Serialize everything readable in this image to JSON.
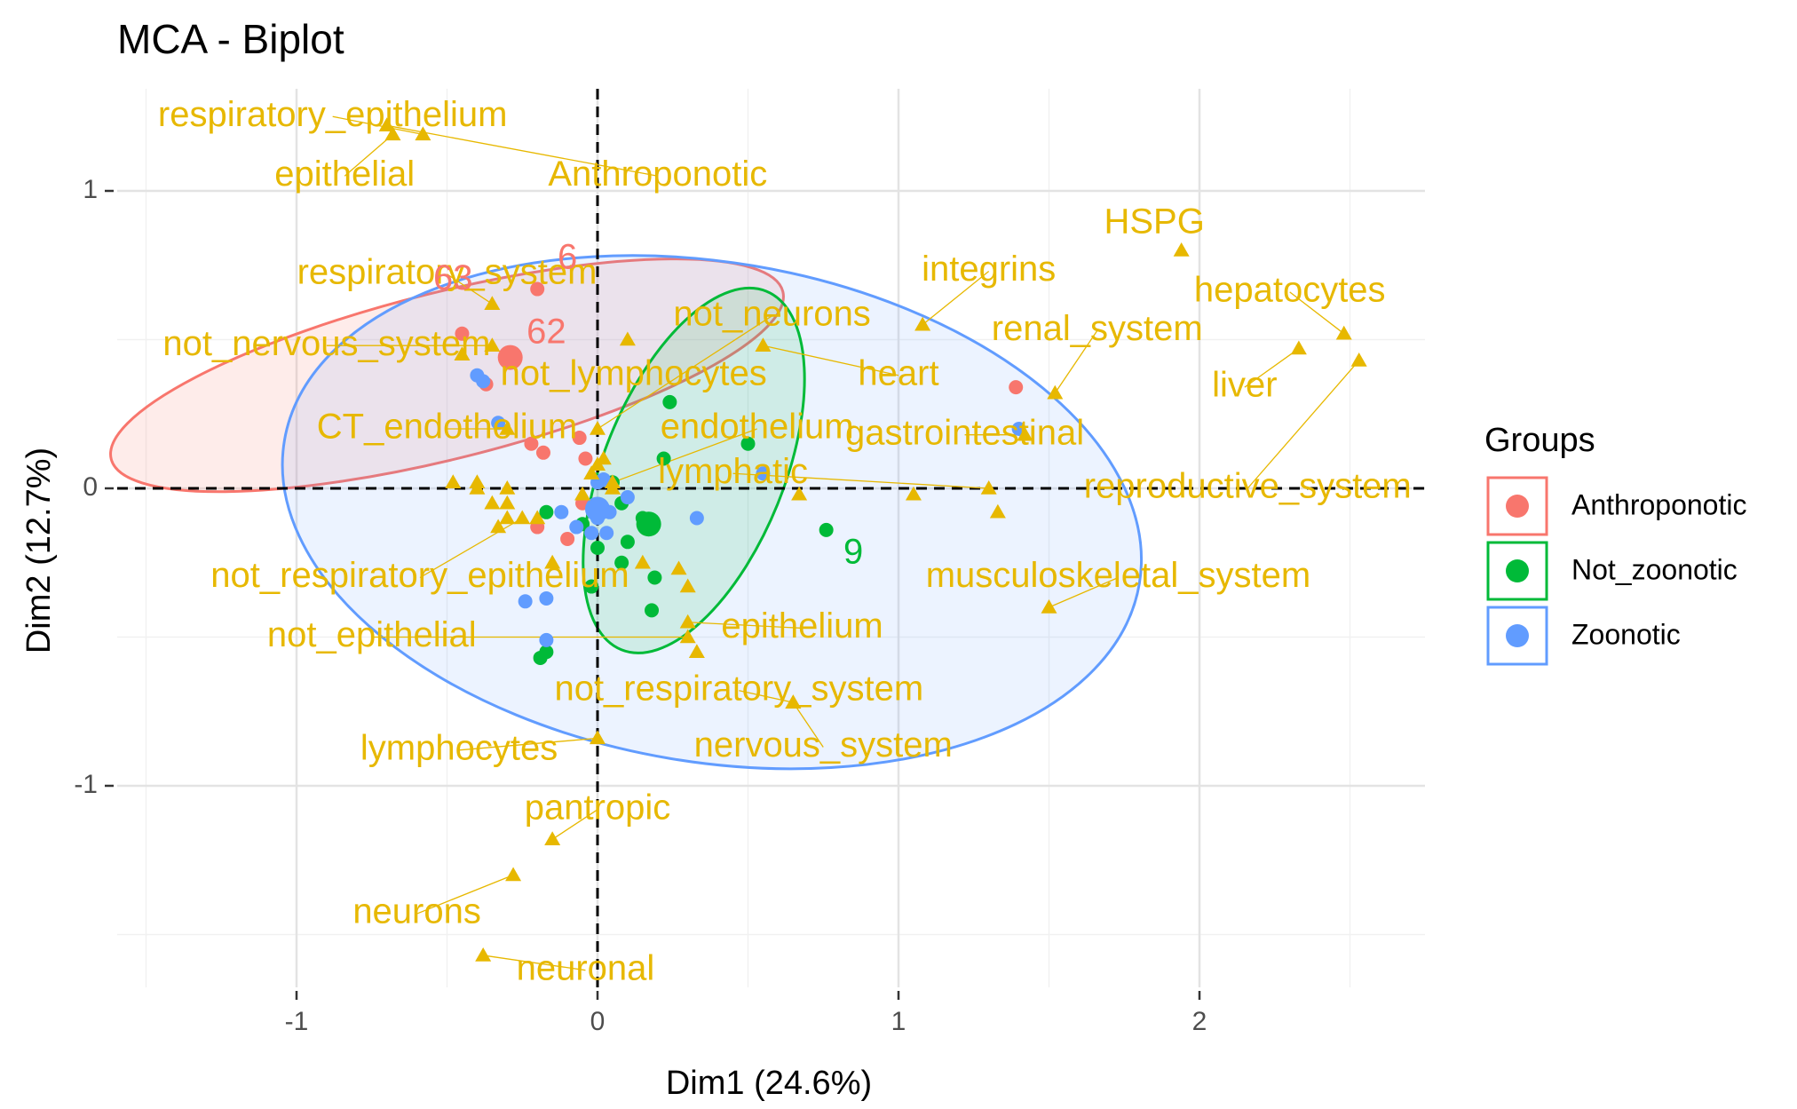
{
  "chart_data": {
    "type": "scatter",
    "title": "MCA - Biplot",
    "xlabel": "Dim1 (24.6%)",
    "ylabel": "Dim2 (12.7%)",
    "xlim": [
      -1.52,
      2.74
    ],
    "ylim": [
      -1.72,
      1.34
    ],
    "x_ticks": [
      -1,
      0,
      1,
      2
    ],
    "x_tick_labels": [
      "-1",
      "0",
      "1",
      "2"
    ],
    "y_ticks": [
      -1,
      0,
      1
    ],
    "y_tick_labels": [
      "-1",
      "0",
      "1"
    ],
    "grid": true,
    "reference_lines": {
      "x": 0,
      "y": 0,
      "style": "dashed"
    },
    "legend": {
      "title": "Groups",
      "position": "right",
      "entries": [
        {
          "name": "Anthroponotic",
          "color": "#F8766D"
        },
        {
          "name": "Not_zoonotic",
          "color": "#00BA38"
        },
        {
          "name": "Zoonotic",
          "color": "#619CFF"
        }
      ]
    },
    "ellipses": [
      {
        "group": "Anthroponotic",
        "color": "#F8766D",
        "center": [
          -0.5,
          0.38
        ],
        "rx": 1.15,
        "ry": 0.28,
        "angle_deg": -14
      },
      {
        "group": "Zoonotic",
        "color": "#619CFF",
        "center": [
          0.38,
          -0.08
        ],
        "rx": 1.44,
        "ry": 0.84,
        "angle_deg": 9.5
      },
      {
        "group": "Not_zoonotic",
        "color": "#00BA38",
        "center": [
          0.32,
          0.06
        ],
        "rx": 0.3,
        "ry": 0.65,
        "angle_deg": 22
      }
    ],
    "variable_color": "#E7B800",
    "variables": [
      {
        "label": "respiratory_epithelium",
        "x": -0.58,
        "y": 1.19,
        "lx": -0.88,
        "ly": 1.25
      },
      {
        "label": "epithelial",
        "x": -0.68,
        "y": 1.19,
        "lx": -0.84,
        "ly": 1.05
      },
      {
        "label": "Anthroponotic",
        "x": -0.7,
        "y": 1.22,
        "lx": 0.2,
        "ly": 1.05
      },
      {
        "label": "respiratory_system",
        "x": -0.35,
        "y": 0.62,
        "lx": -0.5,
        "ly": 0.72
      },
      {
        "label": "not_nervous_system",
        "x": -0.35,
        "y": 0.48,
        "lx": -0.9,
        "ly": 0.48
      },
      {
        "label": "not_lymphocytes",
        "x": 0.1,
        "y": 0.5,
        "lx": 0.12,
        "ly": 0.38
      },
      {
        "label": "heart",
        "x": 0.55,
        "y": 0.48,
        "lx": 1.0,
        "ly": 0.38
      },
      {
        "label": "not_neurons",
        "x": 0.0,
        "y": 0.2,
        "lx": 0.58,
        "ly": 0.58
      },
      {
        "label": "CT_endothelium",
        "x": -0.3,
        "y": 0.2,
        "lx": -0.5,
        "ly": 0.2
      },
      {
        "label": "endothelium",
        "x": 0.05,
        "y": 0.02,
        "lx": 0.53,
        "ly": 0.2
      },
      {
        "label": "lymphatic",
        "x": 1.3,
        "y": 0.0,
        "lx": 0.45,
        "ly": 0.05
      },
      {
        "label": "integrins",
        "x": 1.08,
        "y": 0.55,
        "lx": 1.3,
        "ly": 0.73
      },
      {
        "label": "renal_system",
        "x": 1.52,
        "y": 0.32,
        "lx": 1.66,
        "ly": 0.53
      },
      {
        "label": "HSPG",
        "x": 1.94,
        "y": 0.8,
        "lx": 1.85,
        "ly": 0.89
      },
      {
        "label": "hepatocytes",
        "x": 2.48,
        "y": 0.52,
        "lx": 2.3,
        "ly": 0.66
      },
      {
        "label": "liver",
        "x": 2.33,
        "y": 0.47,
        "lx": 2.15,
        "ly": 0.34
      },
      {
        "label": "gastrointestinal",
        "x": 1.42,
        "y": 0.18,
        "lx": 1.22,
        "ly": 0.18
      },
      {
        "label": "reproductive_system",
        "x": 2.53,
        "y": 0.43,
        "lx": 2.16,
        "ly": 0.0
      },
      {
        "label": "musculoskeletal_system",
        "x": 1.5,
        "y": -0.4,
        "lx": 1.73,
        "ly": -0.3
      },
      {
        "label": "not_respiratory_epithelium",
        "x": -0.25,
        "y": -0.1,
        "lx": -0.59,
        "ly": -0.3
      },
      {
        "label": "not_epithelial",
        "x": 0.3,
        "y": -0.5,
        "lx": -0.75,
        "ly": -0.5
      },
      {
        "label": "epithelium",
        "x": 0.3,
        "y": -0.45,
        "lx": 0.68,
        "ly": -0.47
      },
      {
        "label": "not_respiratory_system",
        "x": 0.65,
        "y": -0.72,
        "lx": 0.47,
        "ly": -0.68
      },
      {
        "label": "nervous_system",
        "x": 0.65,
        "y": -0.72,
        "lx": 0.75,
        "ly": -0.87
      },
      {
        "label": "lymphocytes",
        "x": 0.0,
        "y": -0.84,
        "lx": -0.46,
        "ly": -0.88
      },
      {
        "label": "pantropic",
        "x": -0.15,
        "y": -1.18,
        "lx": 0.0,
        "ly": -1.08
      },
      {
        "label": "neurons",
        "x": -0.28,
        "y": -1.3,
        "lx": -0.6,
        "ly": -1.43
      },
      {
        "label": "neuronal",
        "x": -0.38,
        "y": -1.57,
        "lx": -0.04,
        "ly": -1.62
      }
    ],
    "extra_variable_points": [
      [
        -0.48,
        0.02
      ],
      [
        -0.4,
        0.02
      ],
      [
        -0.3,
        0.0
      ],
      [
        -0.35,
        -0.05
      ],
      [
        -0.3,
        -0.05
      ],
      [
        -0.33,
        -0.13
      ],
      [
        -0.3,
        -0.1
      ],
      [
        -0.2,
        -0.1
      ],
      [
        -0.15,
        -0.25
      ],
      [
        -0.05,
        -0.02
      ],
      [
        -0.02,
        0.05
      ],
      [
        0.05,
        0.0
      ],
      [
        0.0,
        0.08
      ],
      [
        0.02,
        0.1
      ],
      [
        0.15,
        -0.25
      ],
      [
        0.27,
        -0.27
      ],
      [
        0.3,
        -0.33
      ],
      [
        0.33,
        -0.55
      ],
      [
        0.67,
        -0.02
      ],
      [
        1.05,
        -0.02
      ],
      [
        1.33,
        -0.08
      ],
      [
        -0.4,
        0.0
      ],
      [
        -0.45,
        0.45
      ]
    ],
    "individual_labels": [
      {
        "label": "63",
        "group": "Anthroponotic",
        "x": -0.48,
        "y": 0.7
      },
      {
        "label": "6",
        "group": "Anthroponotic",
        "x": -0.1,
        "y": 0.77
      },
      {
        "label": "62",
        "group": "Anthroponotic",
        "x": -0.17,
        "y": 0.52
      },
      {
        "label": "9",
        "group": "Not_zoonotic",
        "x": 0.85,
        "y": -0.22
      }
    ],
    "series": [
      {
        "name": "Anthroponotic",
        "color": "#F8766D",
        "centroid": [
          -0.29,
          0.44
        ],
        "points": [
          [
            -0.2,
            0.67
          ],
          [
            -0.45,
            0.52
          ],
          [
            -0.37,
            0.35
          ],
          [
            -0.22,
            0.15
          ],
          [
            -0.18,
            0.12
          ],
          [
            -0.06,
            0.17
          ],
          [
            -0.04,
            0.1
          ],
          [
            -0.05,
            -0.05
          ],
          [
            -0.1,
            -0.17
          ],
          [
            -0.2,
            -0.13
          ],
          [
            1.39,
            0.34
          ]
        ]
      },
      {
        "name": "Not_zoonotic",
        "color": "#00BA38",
        "centroid": [
          0.17,
          -0.12
        ],
        "points": [
          [
            0.24,
            0.29
          ],
          [
            0.5,
            0.15
          ],
          [
            0.22,
            0.1
          ],
          [
            0.05,
            0.02
          ],
          [
            0.08,
            -0.05
          ],
          [
            0.15,
            -0.1
          ],
          [
            0.0,
            -0.07
          ],
          [
            -0.17,
            -0.08
          ],
          [
            -0.05,
            -0.12
          ],
          [
            0.1,
            -0.18
          ],
          [
            0.0,
            -0.2
          ],
          [
            0.08,
            -0.25
          ],
          [
            0.19,
            -0.3
          ],
          [
            -0.02,
            -0.33
          ],
          [
            0.18,
            -0.41
          ],
          [
            -0.17,
            -0.55
          ],
          [
            -0.19,
            -0.57
          ],
          [
            0.76,
            -0.14
          ]
        ]
      },
      {
        "name": "Zoonotic",
        "color": "#619CFF",
        "centroid": [
          0.0,
          -0.07
        ],
        "points": [
          [
            -0.4,
            0.38
          ],
          [
            -0.38,
            0.36
          ],
          [
            -0.33,
            0.22
          ],
          [
            0.0,
            0.02
          ],
          [
            0.02,
            0.03
          ],
          [
            0.1,
            -0.03
          ],
          [
            0.04,
            -0.08
          ],
          [
            -0.02,
            -0.15
          ],
          [
            -0.07,
            -0.13
          ],
          [
            -0.12,
            -0.08
          ],
          [
            0.33,
            -0.1
          ],
          [
            0.55,
            0.05
          ],
          [
            -0.24,
            -0.38
          ],
          [
            -0.17,
            -0.37
          ],
          [
            -0.17,
            -0.51
          ],
          [
            1.4,
            0.2
          ],
          [
            0.0,
            -0.1
          ],
          [
            0.03,
            -0.15
          ]
        ]
      }
    ]
  }
}
